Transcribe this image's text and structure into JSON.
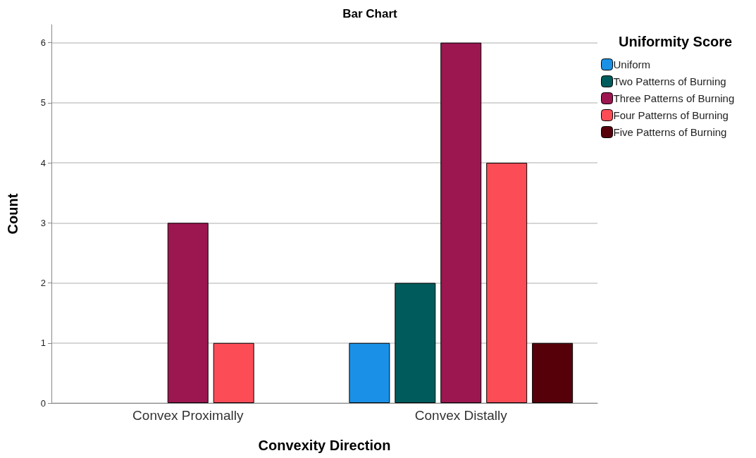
{
  "chart_data": {
    "type": "bar",
    "title": "Bar Chart",
    "xlabel": "Convexity Direction",
    "ylabel": "Count",
    "legend_title": "Uniformity Score",
    "categories": [
      "Convex Proximally",
      "Convex Distally"
    ],
    "series": [
      {
        "name": "Uniform",
        "color": "#1a91e6",
        "values": [
          null,
          1
        ]
      },
      {
        "name": "Two Patterns of Burning",
        "color": "#005c5c",
        "values": [
          null,
          2
        ]
      },
      {
        "name": "Three Patterns of Burning",
        "color": "#9c1650",
        "values": [
          3,
          6
        ]
      },
      {
        "name": "Four Patterns of Burning",
        "color": "#fc4d57",
        "values": [
          1,
          4
        ]
      },
      {
        "name": "Five Patterns of Burning",
        "color": "#56000a",
        "values": [
          null,
          1
        ]
      }
    ],
    "ylim": [
      0,
      6.3
    ],
    "yticks": [
      0,
      1,
      2,
      3,
      4,
      5,
      6
    ],
    "grid": "y",
    "legend": "top right"
  }
}
